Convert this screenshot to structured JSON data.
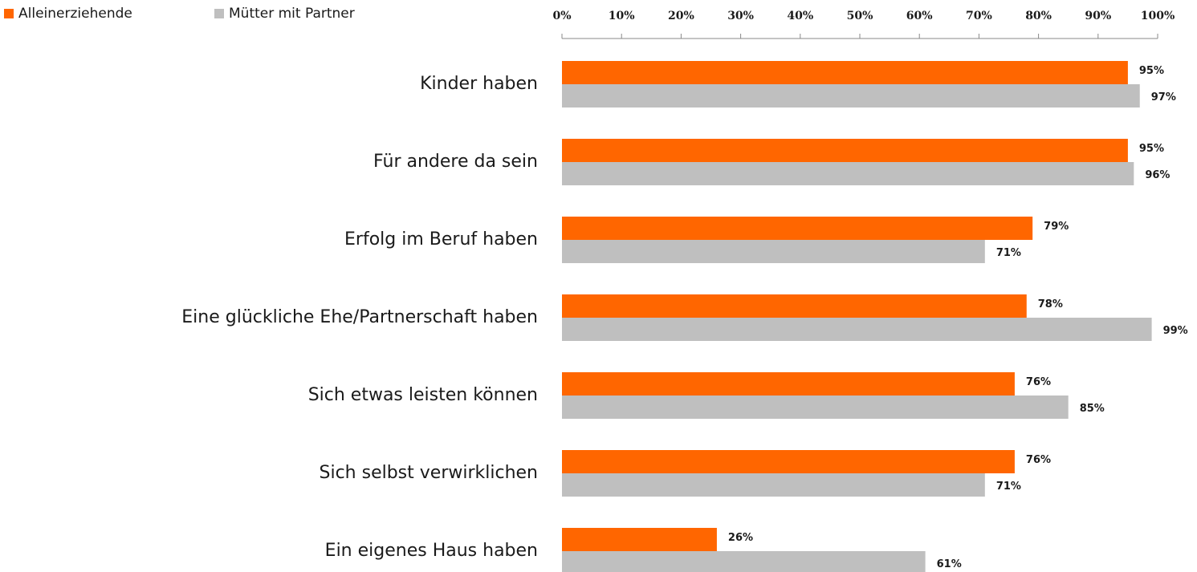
{
  "chart_data": {
    "type": "bar",
    "orientation": "horizontal",
    "categories": [
      "Kinder haben",
      "Für andere da sein",
      "Erfolg im Beruf haben",
      "Eine glückliche Ehe/Partnerschaft haben",
      "Sich etwas leisten können",
      "Sich selbst verwirklichen",
      "Ein eigenes Haus haben"
    ],
    "series": [
      {
        "name": "Alleinerziehende",
        "color": "#ff6600",
        "values": [
          95,
          95,
          79,
          78,
          76,
          76,
          26
        ],
        "value_labels": [
          "95%",
          "95%",
          "79%",
          "78%",
          "76%",
          "76%",
          "26%"
        ]
      },
      {
        "name": "Mütter mit Partner",
        "color": "#bfbfbf",
        "values": [
          97,
          96,
          71,
          99,
          85,
          71,
          61
        ],
        "value_labels": [
          "97%",
          "96%",
          "71%",
          "99%",
          "85%",
          "71%",
          "61%"
        ]
      }
    ],
    "xlim": [
      0,
      100
    ],
    "xticks": [
      {
        "value": 0,
        "label": "0%"
      },
      {
        "value": 10,
        "label": "10%"
      },
      {
        "value": 20,
        "label": "20%"
      },
      {
        "value": 30,
        "label": "30%"
      },
      {
        "value": 40,
        "label": "40%"
      },
      {
        "value": 50,
        "label": "50%"
      },
      {
        "value": 60,
        "label": "60%"
      },
      {
        "value": 70,
        "label": "70%"
      },
      {
        "value": 80,
        "label": "80%"
      },
      {
        "value": 90,
        "label": "90%"
      },
      {
        "value": 100,
        "label": "100%"
      }
    ],
    "legend": "top-left"
  }
}
